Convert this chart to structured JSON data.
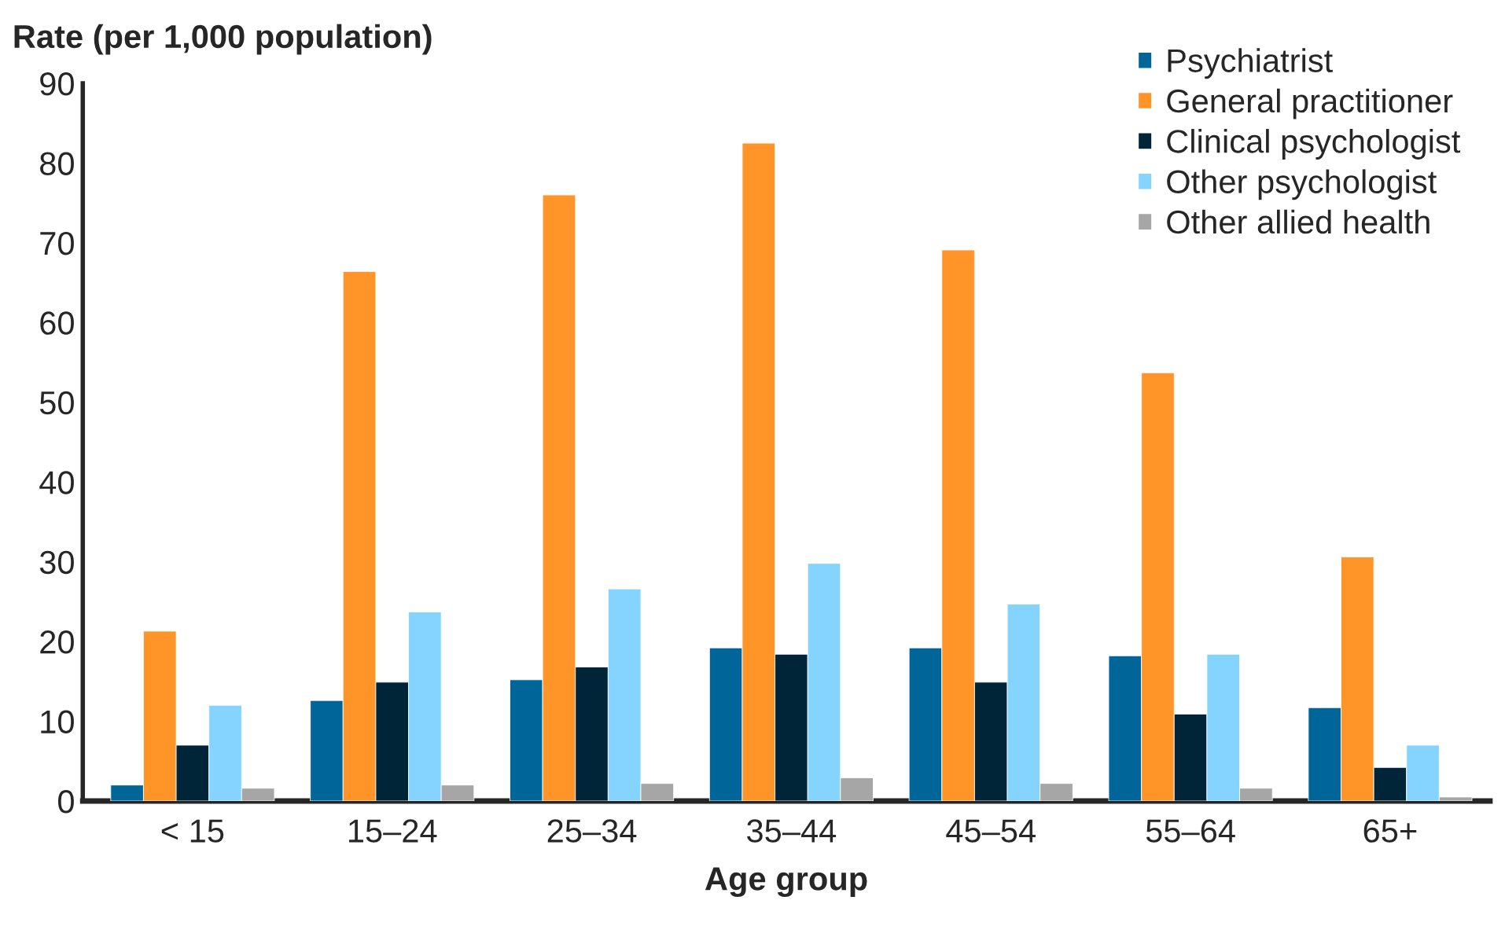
{
  "chart_data": {
    "type": "bar",
    "ylabel": "Rate (per 1,000 population)",
    "xlabel": "Age group",
    "categories": [
      "< 15",
      "15–24",
      "25–34",
      "35–44",
      "45–54",
      "55–64",
      "65+"
    ],
    "series": [
      {
        "name": "Psychiatrist",
        "color": "#006699",
        "values": [
          2.0,
          12.6,
          15.2,
          19.2,
          19.2,
          18.2,
          11.7
        ]
      },
      {
        "name": "General practitioner",
        "color": "#ff9429",
        "values": [
          21.3,
          66.4,
          76.0,
          82.5,
          69.1,
          53.7,
          30.6
        ]
      },
      {
        "name": "Clinical psychologist",
        "color": "#002538",
        "values": [
          7.0,
          14.9,
          16.8,
          18.4,
          14.9,
          10.9,
          4.2
        ]
      },
      {
        "name": "Other psychologist",
        "color": "#85d4ff",
        "values": [
          12.0,
          23.7,
          26.6,
          29.8,
          24.7,
          18.4,
          7.0
        ]
      },
      {
        "name": "Other allied health",
        "color": "#a6a6a6",
        "values": [
          1.6,
          2.0,
          2.2,
          2.9,
          2.2,
          1.6,
          0.5
        ]
      }
    ],
    "ylim": [
      0,
      90
    ],
    "yticks": [
      0,
      10,
      20,
      30,
      40,
      50,
      60,
      70,
      80,
      90
    ],
    "grid": false,
    "legend": "top right"
  }
}
